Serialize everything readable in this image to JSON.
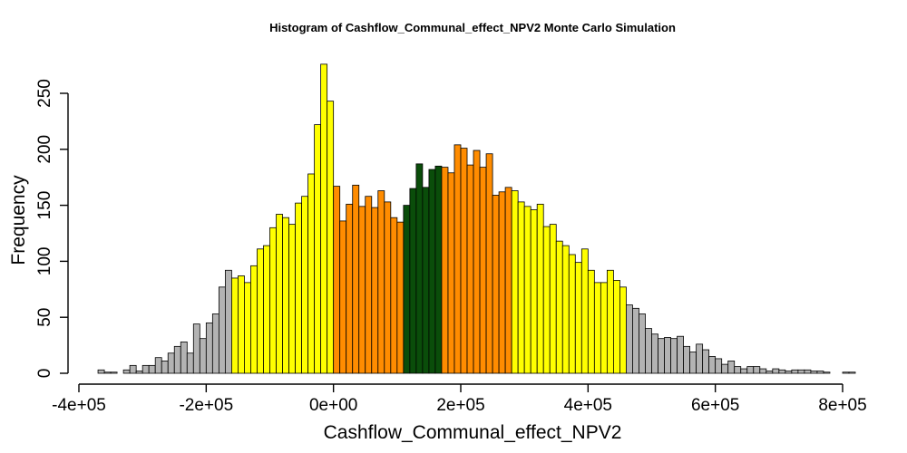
{
  "chart_data": {
    "type": "bar",
    "title": "Histogram of  Cashflow_Communal_effect_NPV2  Monte Carlo Simulation",
    "xlabel": "Cashflow_Communal_effect_NPV2",
    "ylabel": "Frequency",
    "bin_width": 10000,
    "bin_start": -370000,
    "xlim": [
      -400000,
      800000
    ],
    "ylim": [
      0,
      275
    ],
    "x_ticks": [
      -400000,
      -200000,
      0,
      200000,
      400000,
      600000,
      800000
    ],
    "x_tick_labels": [
      "-4e+05",
      "-2e+05",
      "0e+00",
      "2e+05",
      "4e+05",
      "6e+05",
      "8e+05"
    ],
    "y_ticks": [
      0,
      50,
      100,
      150,
      200,
      250
    ],
    "y_tick_labels": [
      "0",
      "50",
      "100",
      "150",
      "200",
      "250"
    ],
    "colors": {
      "tail": "#b3b3b3",
      "outer": "#ffff00",
      "inner": "#ff8c00",
      "center": "#0a4d0a"
    },
    "frequencies": [
      3,
      1,
      1,
      0,
      3,
      7,
      2,
      7,
      7,
      14,
      11,
      18,
      24,
      28,
      18,
      44,
      31,
      45,
      53,
      77,
      92,
      85,
      87,
      81,
      96,
      111,
      114,
      130,
      142,
      139,
      133,
      152,
      158,
      178,
      222,
      276,
      243,
      167,
      136,
      151,
      168,
      149,
      158,
      148,
      163,
      153,
      139,
      135,
      150,
      165,
      187,
      166,
      182,
      185,
      184,
      179,
      204,
      201,
      186,
      199,
      184,
      196,
      159,
      162,
      166,
      163,
      153,
      149,
      146,
      151,
      131,
      133,
      118,
      114,
      106,
      99,
      111,
      92,
      81,
      81,
      92,
      83,
      77,
      61,
      58,
      53,
      40,
      35,
      31,
      32,
      31,
      33,
      24,
      19,
      26,
      21,
      15,
      13,
      8,
      11,
      6,
      4,
      6,
      6,
      4,
      2,
      4,
      3,
      2,
      3,
      3,
      3,
      2,
      2,
      1,
      0,
      0,
      1,
      1
    ],
    "color_classes": [
      "tail",
      "tail",
      "tail",
      "tail",
      "tail",
      "tail",
      "tail",
      "tail",
      "tail",
      "tail",
      "tail",
      "tail",
      "tail",
      "tail",
      "tail",
      "tail",
      "tail",
      "tail",
      "tail",
      "tail",
      "tail",
      "outer",
      "outer",
      "outer",
      "outer",
      "outer",
      "outer",
      "outer",
      "outer",
      "outer",
      "outer",
      "outer",
      "outer",
      "outer",
      "outer",
      "outer",
      "outer",
      "inner",
      "inner",
      "inner",
      "inner",
      "inner",
      "inner",
      "inner",
      "inner",
      "inner",
      "inner",
      "inner",
      "center",
      "center",
      "center",
      "center",
      "center",
      "center",
      "inner",
      "inner",
      "inner",
      "inner",
      "inner",
      "inner",
      "inner",
      "inner",
      "inner",
      "inner",
      "inner",
      "outer",
      "outer",
      "outer",
      "outer",
      "outer",
      "outer",
      "outer",
      "outer",
      "outer",
      "outer",
      "outer",
      "outer",
      "outer",
      "outer",
      "outer",
      "outer",
      "outer",
      "outer",
      "tail",
      "tail",
      "tail",
      "tail",
      "tail",
      "tail",
      "tail",
      "tail",
      "tail",
      "tail",
      "tail",
      "tail",
      "tail",
      "tail",
      "tail",
      "tail",
      "tail",
      "tail",
      "tail",
      "tail",
      "tail",
      "tail",
      "tail",
      "tail",
      "tail",
      "tail",
      "tail",
      "tail",
      "tail",
      "tail",
      "tail",
      "tail",
      "tail",
      "tail",
      "tail",
      "tail",
      "tail",
      "tail"
    ]
  }
}
